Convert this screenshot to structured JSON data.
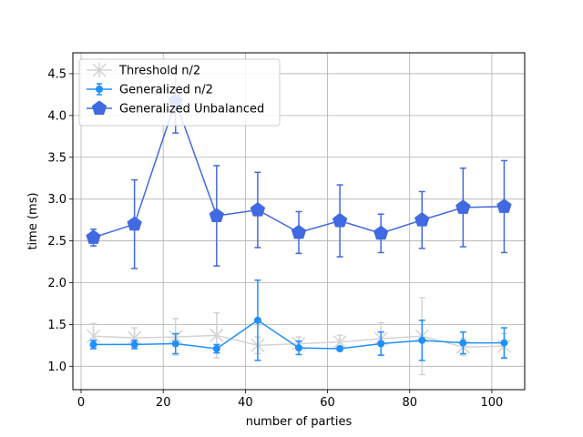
{
  "chart_data": {
    "type": "line",
    "title": "",
    "xlabel": "number of parties",
    "ylabel": "time (ms)",
    "xlim": [
      -2,
      108
    ],
    "ylim": [
      0.72,
      4.75
    ],
    "x_ticks": [
      0,
      20,
      40,
      60,
      80,
      100
    ],
    "y_ticks": [
      1.0,
      1.5,
      2.0,
      2.5,
      3.0,
      3.5,
      4.0,
      4.5
    ],
    "x_tick_labels": [
      "0",
      "20",
      "40",
      "60",
      "80",
      "100"
    ],
    "y_tick_labels": [
      "1.0",
      "1.5",
      "2.0",
      "2.5",
      "3.0",
      "3.5",
      "4.0",
      "4.5"
    ],
    "grid": true,
    "legend_position": "top-left",
    "series": [
      {
        "name": "Threshold n/2",
        "color": "#d3d3d3",
        "marker": "x",
        "x": [
          3,
          13,
          23,
          33,
          43,
          53,
          63,
          73,
          83,
          93,
          103
        ],
        "y": [
          1.36,
          1.34,
          1.35,
          1.37,
          1.25,
          1.27,
          1.29,
          1.33,
          1.36,
          1.23,
          1.24
        ],
        "err": [
          0.15,
          0.12,
          0.22,
          0.27,
          0.1,
          0.08,
          0.08,
          0.19,
          0.46,
          0.1,
          0.15
        ]
      },
      {
        "name": "Generalized n/2",
        "color": "#1e90ff",
        "marker": "dot",
        "x": [
          3,
          13,
          23,
          33,
          43,
          53,
          63,
          73,
          83,
          93,
          103
        ],
        "y": [
          1.26,
          1.26,
          1.27,
          1.21,
          1.55,
          1.22,
          1.21,
          1.27,
          1.31,
          1.28,
          1.28
        ],
        "err": [
          0.05,
          0.05,
          0.12,
          0.05,
          0.48,
          0.08,
          0.02,
          0.14,
          0.24,
          0.13,
          0.18
        ]
      },
      {
        "name": "Generalized Unbalanced",
        "color": "#4169e1",
        "marker": "pentagon",
        "x": [
          3,
          13,
          23,
          33,
          43,
          53,
          63,
          73,
          83,
          93,
          103
        ],
        "y": [
          2.54,
          2.7,
          4.17,
          2.8,
          2.87,
          2.6,
          2.74,
          2.59,
          2.75,
          2.9,
          2.91
        ],
        "err": [
          0.1,
          0.53,
          0.38,
          0.6,
          0.45,
          0.25,
          0.43,
          0.23,
          0.34,
          0.47,
          0.55
        ]
      }
    ]
  }
}
